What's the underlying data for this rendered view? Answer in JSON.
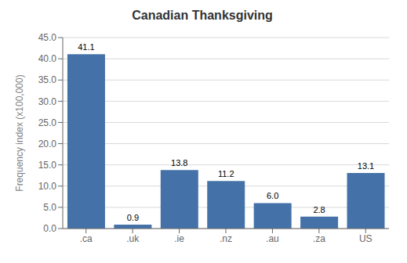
{
  "chart_data": {
    "type": "bar",
    "title": "Canadian Thanksgiving",
    "categories": [
      ".ca",
      ".uk",
      ".ie",
      ".nz",
      ".au",
      ".za",
      "US"
    ],
    "values": [
      41.1,
      0.9,
      13.8,
      11.2,
      6.0,
      2.8,
      13.1
    ],
    "value_labels": [
      "41.1",
      "0.9",
      "13.8",
      "11.2",
      "6.0",
      "2.8",
      "13.1"
    ],
    "data_labels": true,
    "color": "#4472A8",
    "ylabel": "Frequency index (x100,000)",
    "ylim": [
      0,
      45.0
    ],
    "yticks": [
      {
        "value": 0,
        "label": "0.0"
      },
      {
        "value": 5,
        "label": "5.0"
      },
      {
        "value": 10,
        "label": "10.0"
      },
      {
        "value": 15,
        "label": "15.0"
      },
      {
        "value": 20,
        "label": "20.0"
      },
      {
        "value": 25,
        "label": "25.0"
      },
      {
        "value": 30,
        "label": "30.0"
      },
      {
        "value": 35,
        "label": "35.0"
      },
      {
        "value": 40,
        "label": "40.0"
      },
      {
        "value": 45,
        "label": "45.0"
      }
    ],
    "grid": true
  }
}
